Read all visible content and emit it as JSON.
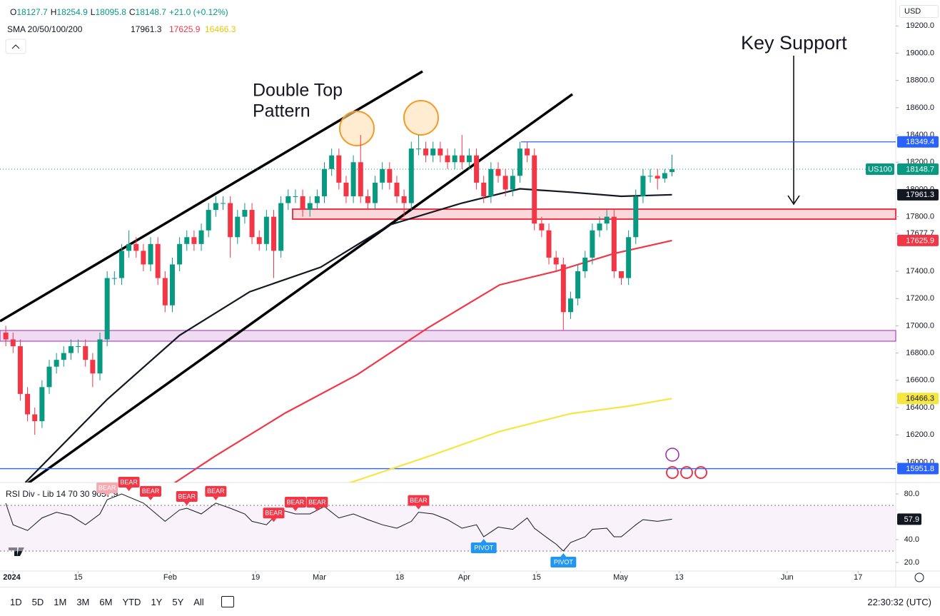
{
  "header": {
    "ohlc": [
      {
        "key": "O",
        "value": "18127.7"
      },
      {
        "key": "H",
        "value": "18254.9"
      },
      {
        "key": "L",
        "value": "18095.8"
      },
      {
        "key": "C",
        "value": "18148.7"
      }
    ],
    "change": "+21.0 (+0.12%)",
    "sma_title": "SMA 20/50/100/200",
    "sma_values": [
      "17961.3",
      "17625.9",
      "16466.3"
    ],
    "currency": "USD"
  },
  "toolbar": {
    "ranges": [
      "1D",
      "5D",
      "1M",
      "3M",
      "6M",
      "YTD",
      "1Y",
      "5Y",
      "All"
    ],
    "time": "22:30:32 (UTC)"
  },
  "chart_data": [
    {
      "type": "candlestick",
      "open": [
        16950,
        16900,
        16850,
        16500,
        16350,
        16300,
        16550,
        16700,
        16750,
        16800,
        16850,
        16850,
        16750,
        16650,
        16900,
        17350,
        17350,
        17550,
        17600,
        17550,
        17450,
        17600,
        17350,
        17150,
        17450,
        17600,
        17650,
        17600,
        17700,
        17850,
        17900,
        17900,
        17650,
        17800,
        17850,
        17650,
        17600,
        17800,
        17550,
        17900,
        17950,
        17950,
        17850,
        17900,
        17950,
        18150,
        18250,
        18050,
        17950,
        18200,
        17950,
        17900,
        18050,
        18150,
        18050,
        17950,
        17900,
        18300,
        18300,
        18250,
        18300,
        18250,
        18200,
        18250,
        18200,
        18250,
        18050,
        17950,
        18150,
        18100,
        18000,
        18100,
        18300,
        18250,
        17750,
        17700,
        17500,
        17450,
        17100,
        17200,
        17400,
        17500,
        17700,
        17750,
        17800,
        17400,
        17350,
        17650,
        17950,
        18100,
        18100,
        18080,
        18127.7
      ],
      "high": [
        17000,
        16950,
        16900,
        16550,
        16400,
        16600,
        16750,
        16800,
        16850,
        16900,
        16900,
        16900,
        16800,
        16950,
        17400,
        17400,
        17600,
        17700,
        17650,
        17600,
        17650,
        17650,
        17400,
        17500,
        17650,
        17700,
        17700,
        17750,
        17900,
        17950,
        17950,
        17950,
        17850,
        17900,
        17900,
        17700,
        17850,
        17850,
        17950,
        18000,
        18000,
        18000,
        17950,
        18000,
        18200,
        18300,
        18300,
        18100,
        18250,
        18400,
        18000,
        18100,
        18200,
        18200,
        18100,
        18000,
        18350,
        18400,
        18350,
        18350,
        18350,
        18300,
        18300,
        18400,
        18300,
        18300,
        18100,
        18200,
        18200,
        18150,
        18150,
        18350,
        18350,
        18300,
        17800,
        17750,
        17550,
        17500,
        17250,
        17450,
        17550,
        17750,
        17800,
        17850,
        17850,
        17400,
        17700,
        18000,
        18150,
        18150,
        18150,
        18150,
        18254.9
      ],
      "low": [
        16850,
        16800,
        16450,
        16300,
        16200,
        16250,
        16500,
        16650,
        16700,
        16750,
        16800,
        16700,
        16550,
        16600,
        16850,
        17300,
        17300,
        17500,
        17500,
        17400,
        17400,
        17300,
        17100,
        17100,
        17400,
        17550,
        17550,
        17550,
        17650,
        17800,
        17850,
        17500,
        17600,
        17750,
        17600,
        17550,
        17550,
        17350,
        17500,
        17850,
        17900,
        17800,
        17800,
        17850,
        17900,
        18100,
        18000,
        17900,
        17900,
        17900,
        17850,
        17850,
        18000,
        18000,
        17900,
        17800,
        17850,
        18250,
        18200,
        18200,
        18200,
        18150,
        18150,
        18150,
        18150,
        18000,
        17900,
        17900,
        18050,
        17950,
        17950,
        18050,
        18200,
        17700,
        17650,
        17450,
        17400,
        16970,
        17050,
        17150,
        17350,
        17450,
        17650,
        17700,
        17350,
        17300,
        17300,
        17600,
        17900,
        18050,
        18000,
        18050,
        18095.8
      ],
      "close": [
        16900,
        16850,
        16500,
        16350,
        16300,
        16550,
        16700,
        16750,
        16800,
        16850,
        16850,
        16750,
        16650,
        16900,
        17350,
        17350,
        17550,
        17600,
        17550,
        17450,
        17600,
        17350,
        17150,
        17450,
        17600,
        17650,
        17600,
        17700,
        17850,
        17900,
        17900,
        17650,
        17800,
        17850,
        17650,
        17600,
        17800,
        17550,
        17900,
        17950,
        17950,
        17850,
        17900,
        17950,
        18150,
        18250,
        18050,
        17950,
        18200,
        17950,
        17900,
        18050,
        18150,
        18050,
        17950,
        17900,
        18300,
        18300,
        18250,
        18300,
        18250,
        18200,
        18250,
        18200,
        18250,
        18050,
        17950,
        18150,
        18100,
        18000,
        18100,
        18300,
        18250,
        17750,
        17700,
        17500,
        17450,
        17100,
        17200,
        17400,
        17500,
        17700,
        17750,
        17800,
        17400,
        17350,
        17650,
        17950,
        18100,
        18100,
        18080,
        18120,
        18148.7
      ],
      "colors": {
        "up": "#089981",
        "down": "#f23645"
      },
      "xlim": [
        -0.8,
        122.9
      ],
      "ylim": [
        15850,
        19390
      ],
      "xticks": [
        {
          "value": 1,
          "label": "2024"
        },
        {
          "value": 10,
          "label": "15"
        },
        {
          "value": 22.7,
          "label": "Feb"
        },
        {
          "value": 34.5,
          "label": "19"
        },
        {
          "value": 43.3,
          "label": "Mar"
        },
        {
          "value": 54.4,
          "label": "18"
        },
        {
          "value": 63.3,
          "label": "Apr"
        },
        {
          "value": 73.3,
          "label": "15"
        },
        {
          "value": 84.9,
          "label": "May"
        },
        {
          "value": 93,
          "label": "13"
        },
        {
          "value": 107.9,
          "label": "Jun"
        },
        {
          "value": 117.7,
          "label": "17"
        }
      ],
      "yticks": [
        {
          "value": 19200,
          "label": "19200.0"
        },
        {
          "value": 19000,
          "label": "19000.0"
        },
        {
          "value": 18800,
          "label": "18800.0"
        },
        {
          "value": 18600,
          "label": "18600.0"
        },
        {
          "value": 18400,
          "label": "18400.0"
        },
        {
          "value": 18200,
          "label": "18200.0"
        },
        {
          "value": 18000,
          "label": "18000.0"
        },
        {
          "value": 17800,
          "label": "17800.0"
        },
        17677.7,
        {
          "value": 17400,
          "label": "17400.0"
        },
        {
          "value": 17200,
          "label": "17200.0"
        },
        {
          "value": 17000,
          "label": "17000.0"
        },
        {
          "value": 16800,
          "label": "16800.0"
        },
        {
          "value": 16600,
          "label": "16600.0"
        },
        {
          "value": 16400,
          "label": "16400.0"
        },
        {
          "value": 16200,
          "label": "16200.0"
        },
        {
          "value": 16000,
          "label": "16000.0"
        }
      ],
      "grid": false,
      "series": [
        {
          "color": "#131722",
          "x": [
            2.7,
            14,
            24,
            33.7,
            43.5,
            53,
            63,
            71,
            78,
            85,
            92
          ],
          "values": [
            15850,
            16460,
            16930,
            17250,
            17430,
            17740,
            17900,
            18005,
            17980,
            17950,
            17961.3
          ]
        },
        {
          "color": "#f23645",
          "x": [
            21.4,
            28.8,
            38.6,
            48.5,
            58.3,
            68.2,
            76,
            84,
            92
          ],
          "values": [
            15780,
            16040,
            16360,
            16640,
            16985,
            17300,
            17400,
            17530,
            17625.9
          ]
        },
        {
          "color": "#f5e642",
          "x": [
            46.5,
            58.3,
            68.2,
            78,
            85.9,
            92
          ],
          "values": [
            15830,
            16040,
            16225,
            16356,
            16410,
            16466.3
          ]
        }
      ],
      "price_labels": [
        {
          "value": 18349.4,
          "label": "18349.4",
          "color": "#2962ff",
          "line": true
        },
        {
          "value": 18148.7,
          "label": "18148.7",
          "color": "#089981",
          "tag": "US100"
        },
        {
          "value": 17961.3,
          "label": "17961.3",
          "color": "#131722"
        },
        {
          "value": 17625.9,
          "label": "17625.9",
          "color": "#f23645"
        },
        {
          "value": 16466.3,
          "label": "16466.3",
          "color": "#f5e642"
        },
        {
          "value": 15951.8,
          "label": "15951.8",
          "color": "#2962ff",
          "line": true
        }
      ],
      "annotations": [
        "Double Top",
        "Pattern",
        "Key Support"
      ]
    },
    {
      "type": "line",
      "title": "RSI Div - Lib 14 70 30 90",
      "value_label": "57.9",
      "color": "#131722",
      "xlim": [
        -0.8,
        122.9
      ],
      "ylim": [
        12.5,
        89.4
      ],
      "yticks": [
        {
          "value": 80,
          "label": "80.0"
        },
        {
          "value": 40,
          "label": "40.0"
        },
        {
          "value": 20,
          "label": "20.0"
        }
      ],
      "bands": [
        70,
        30
      ],
      "x": [
        0,
        1,
        3,
        5,
        7,
        9,
        11,
        13,
        14,
        16,
        19,
        22,
        24,
        25,
        27,
        29,
        31,
        33,
        34,
        36,
        38,
        40,
        42,
        44,
        46,
        48,
        50,
        52,
        54,
        56,
        57,
        59,
        61,
        63,
        65,
        66,
        68,
        70,
        72,
        73,
        75,
        76,
        77,
        78,
        80,
        81,
        83,
        84,
        85,
        87,
        88,
        90,
        92
      ],
      "values": [
        71.9,
        53,
        48,
        59,
        64,
        61,
        53,
        62.5,
        75,
        80,
        72,
        56,
        66,
        67.5,
        62.5,
        72,
        67.5,
        62.5,
        56,
        53,
        66,
        62.5,
        62.5,
        69,
        59,
        62.5,
        57.5,
        53,
        50,
        56,
        64,
        62.5,
        57.5,
        50,
        53,
        42.5,
        51,
        49,
        59,
        50,
        40.5,
        36,
        30,
        37.5,
        42.5,
        49,
        50,
        42.5,
        42.5,
        53,
        57.5,
        56,
        57.9
      ],
      "signals": [
        {
          "text": "BEAR",
          "x": 14,
          "color": "#f7a9b0"
        },
        {
          "text": "BEAR",
          "x": 17,
          "color": "#f23645"
        },
        {
          "text": "BEAR",
          "x": 20,
          "color": "#f23645"
        },
        {
          "text": "BEAR",
          "x": 25,
          "color": "#f23645"
        },
        {
          "text": "BEAR",
          "x": 29,
          "color": "#f23645"
        },
        {
          "text": "BEAR",
          "x": 37,
          "color": "#f23645"
        },
        {
          "text": "BEAR",
          "x": 40,
          "color": "#f23645"
        },
        {
          "text": "BEAR",
          "x": 43,
          "color": "#f23645"
        },
        {
          "text": "BEAR",
          "x": 57,
          "color": "#f23645"
        },
        {
          "text": "PIVOT",
          "x": 66,
          "color": "#2196f3"
        },
        {
          "text": "PIVOT",
          "x": 77,
          "color": "#2196f3"
        }
      ]
    }
  ]
}
